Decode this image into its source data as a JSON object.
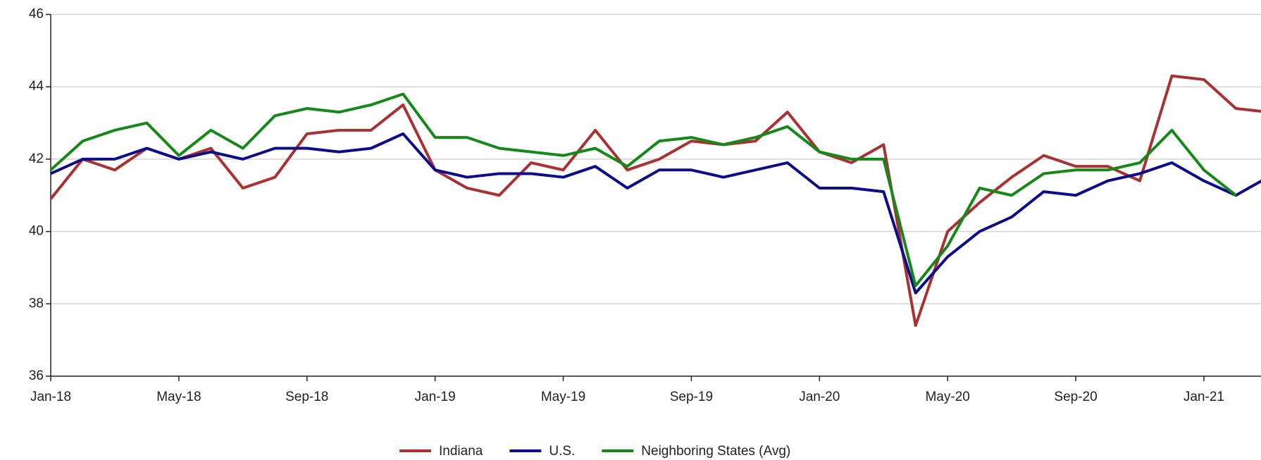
{
  "chart_data": {
    "type": "line",
    "categories": [
      "Jan-18",
      null,
      null,
      null,
      "May-18",
      null,
      null,
      null,
      "Sep-18",
      null,
      null,
      null,
      "Jan-19",
      null,
      null,
      null,
      "May-19",
      null,
      null,
      null,
      "Sep-19",
      null,
      null,
      null,
      "Jan-20",
      null,
      null,
      null,
      "May-20",
      null,
      null,
      null,
      "Sep-20",
      null,
      null,
      null,
      "Jan-21",
      null,
      null
    ],
    "series": [
      {
        "name": "Indiana",
        "color": "#a83232",
        "values": [
          40.9,
          42.0,
          41.7,
          42.3,
          42.0,
          42.3,
          41.2,
          41.5,
          42.7,
          42.8,
          42.8,
          43.5,
          41.7,
          41.2,
          41.0,
          41.9,
          41.7,
          42.8,
          41.7,
          42.0,
          42.5,
          42.4,
          42.5,
          43.3,
          42.2,
          41.9,
          42.4,
          37.4,
          40.0,
          40.8,
          41.5,
          42.1,
          41.8,
          41.8,
          41.4,
          44.3,
          44.2,
          43.4,
          43.3
        ]
      },
      {
        "name": "U.S.",
        "color": "#0d0d8a",
        "values": [
          41.6,
          42.0,
          42.0,
          42.3,
          42.0,
          42.2,
          42.0,
          42.3,
          42.3,
          42.2,
          42.3,
          42.7,
          41.7,
          41.5,
          41.6,
          41.6,
          41.5,
          41.8,
          41.2,
          41.7,
          41.7,
          41.5,
          41.7,
          41.9,
          41.2,
          41.2,
          41.1,
          38.3,
          39.3,
          40.0,
          40.4,
          41.1,
          41.0,
          41.4,
          41.6,
          41.9,
          41.4,
          41.0,
          41.5
        ]
      },
      {
        "name": "Neighboring States (Avg)",
        "color": "#16881a",
        "values": [
          41.7,
          42.5,
          42.8,
          43.0,
          42.1,
          42.8,
          42.3,
          43.2,
          43.4,
          43.3,
          43.5,
          43.8,
          42.6,
          42.6,
          42.3,
          42.2,
          42.1,
          42.3,
          41.8,
          42.5,
          42.6,
          42.4,
          42.6,
          42.9,
          42.2,
          42.0,
          42.0,
          38.5,
          39.6,
          41.2,
          41.0,
          41.6,
          41.7,
          41.7,
          41.9,
          42.8,
          41.7,
          41.0,
          null
        ]
      }
    ],
    "ylim": [
      36,
      46
    ],
    "yticks": [
      36,
      38,
      40,
      42,
      44,
      46
    ],
    "grid": true
  }
}
